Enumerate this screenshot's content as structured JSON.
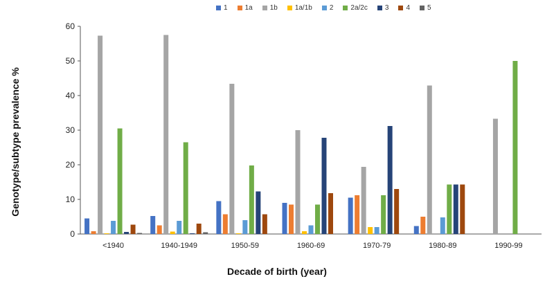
{
  "chart_data": {
    "type": "bar",
    "xlabel": "Decade of birth (year)",
    "ylabel": "Genotype/subtype prevalence %",
    "ylim": [
      0,
      60
    ],
    "yticks": [
      "0",
      "10",
      "20",
      "30",
      "40",
      "50",
      "60"
    ],
    "legend_position": "top",
    "categories": [
      "<1940",
      "1940-1949",
      "1950-59",
      "1960-69",
      "1970-79",
      "1980-89",
      "1990-99"
    ],
    "series": [
      {
        "name": "1",
        "color": "#4472c4",
        "values": [
          4.5,
          5.2,
          9.5,
          9.0,
          10.5,
          2.3,
          0
        ]
      },
      {
        "name": "1a",
        "color": "#ed7d31",
        "values": [
          0.8,
          2.5,
          5.7,
          8.5,
          11.2,
          5.0,
          0
        ]
      },
      {
        "name": "1b",
        "color": "#a5a5a5",
        "values": [
          57.3,
          57.5,
          43.4,
          30.0,
          19.4,
          42.9,
          33.3
        ]
      },
      {
        "name": "1a/1b",
        "color": "#ffc000",
        "values": [
          0.2,
          0.7,
          0.2,
          0.8,
          2.0,
          0,
          0
        ]
      },
      {
        "name": "2",
        "color": "#5b9bd5",
        "values": [
          3.8,
          3.8,
          4.0,
          2.5,
          2.0,
          4.8,
          0
        ]
      },
      {
        "name": "2a/2c",
        "color": "#70ad47",
        "values": [
          30.5,
          26.5,
          19.8,
          8.5,
          11.2,
          14.3,
          50.0
        ]
      },
      {
        "name": "3",
        "color": "#264478",
        "values": [
          0.6,
          0.2,
          12.3,
          27.8,
          31.2,
          14.3,
          0
        ]
      },
      {
        "name": "4",
        "color": "#9e480e",
        "values": [
          2.7,
          3.0,
          5.7,
          11.8,
          13.0,
          14.3,
          0
        ]
      },
      {
        "name": "5",
        "color": "#636363",
        "values": [
          0.3,
          0.5,
          0,
          0,
          0,
          0,
          0
        ]
      }
    ]
  }
}
